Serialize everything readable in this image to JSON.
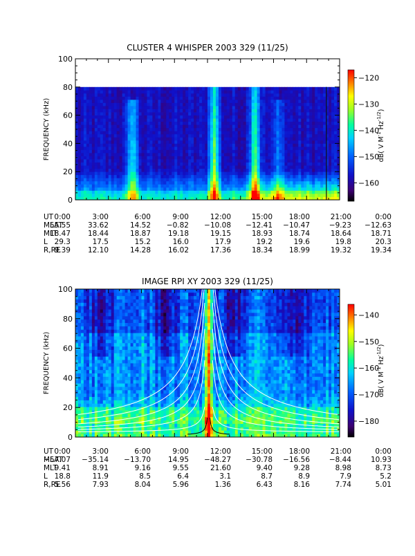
{
  "chart_data": [
    {
      "type": "heatmap",
      "title": "CLUSTER 4 WHISPER 2003 329 (11/25)",
      "ylabel": "FREQUENCY (kHz)",
      "ylim": [
        0,
        100
      ],
      "yticks": [
        "0",
        "20",
        "40",
        "60",
        "80",
        "100"
      ],
      "xlim_hours": [
        0,
        24
      ],
      "data_max_freq_khz": 80,
      "colorbar": {
        "label": "dB( V M^-1 Hz^-1/2)",
        "range": [
          -167,
          -117
        ],
        "ticks": [
          "-120",
          "-130",
          "-140",
          "-150",
          "-160"
        ]
      },
      "bright_bands_hours": [
        {
          "center": 5.2,
          "intensity": "high"
        },
        {
          "center": 12.6,
          "intensity": "very high"
        },
        {
          "center": 16.3,
          "intensity": "very high"
        },
        {
          "center": 18.5,
          "intensity": "medium"
        },
        {
          "center": 22.8,
          "intensity": "line"
        }
      ],
      "ephemeris": {
        "labels": [
          "UT",
          "MLAT",
          "MLT",
          "L",
          "R,RE"
        ],
        "columns": [
          [
            "0:00",
            "55.55",
            "18.47",
            "29.3",
            "9.39"
          ],
          [
            "3:00",
            "33.62",
            "18.44",
            "17.5",
            "12.10"
          ],
          [
            "6:00",
            "14.52",
            "18.87",
            "15.2",
            "14.28"
          ],
          [
            "9:00",
            "-0.82",
            "19.18",
            "16.0",
            "16.02"
          ],
          [
            "12:00",
            "-10.08",
            "19.15",
            "17.9",
            "17.36"
          ],
          [
            "15:00",
            "-12.41",
            "18.93",
            "19.2",
            "18.34"
          ],
          [
            "18:00",
            "-10.47",
            "18.74",
            "19.6",
            "18.99"
          ],
          [
            "21:00",
            "-9.23",
            "18.64",
            "19.8",
            "19.32"
          ],
          [
            "0:00",
            "-12.63",
            "18.71",
            "20.3",
            "19.34"
          ]
        ]
      }
    },
    {
      "type": "heatmap",
      "title": "IMAGE RPI XY 2003 329 (11/25)",
      "ylabel": "FREQUENCY (kHz)",
      "ylim": [
        0,
        100
      ],
      "yticks": [
        "0",
        "20",
        "40",
        "60",
        "80",
        "100"
      ],
      "xlim_hours": [
        0,
        24
      ],
      "data_max_freq_khz": 100,
      "colorbar": {
        "label": "dB( V M^-1 Hz^-1/2)",
        "range": [
          -186,
          -136
        ],
        "ticks": [
          "-140",
          "-150",
          "-160",
          "-170",
          "-180"
        ]
      },
      "perigee_hour": 12.1,
      "bright_bands_hours": [
        {
          "center": 6.0,
          "intensity": "medium"
        },
        {
          "center": 12.1,
          "intensity": "very high"
        },
        {
          "center": 16.5,
          "intensity": "high"
        }
      ],
      "ephemeris": {
        "labels": [
          "UT",
          "MLAT",
          "MLT",
          "L",
          "R,RE"
        ],
        "columns": [
          [
            "0:00",
            "-57.07",
            "9.41",
            "18.8",
            "5.56"
          ],
          [
            "3:00",
            "-35.14",
            "8.91",
            "11.9",
            "7.93"
          ],
          [
            "6:00",
            "-13.70",
            "9.16",
            "8.5",
            "8.04"
          ],
          [
            "9:00",
            "14.95",
            "9.55",
            "6.4",
            "5.96"
          ],
          [
            "12:00",
            "-48.27",
            "21.60",
            "3.1",
            "1.36"
          ],
          [
            "15:00",
            "-30.78",
            "9.40",
            "8.7",
            "6.43"
          ],
          [
            "18:00",
            "-16.56",
            "9.28",
            "8.9",
            "8.16"
          ],
          [
            "21:00",
            "-8.44",
            "8.98",
            "7.9",
            "7.74"
          ],
          [
            "0:00",
            "10.93",
            "8.73",
            "5.2",
            "5.01"
          ]
        ]
      }
    }
  ]
}
